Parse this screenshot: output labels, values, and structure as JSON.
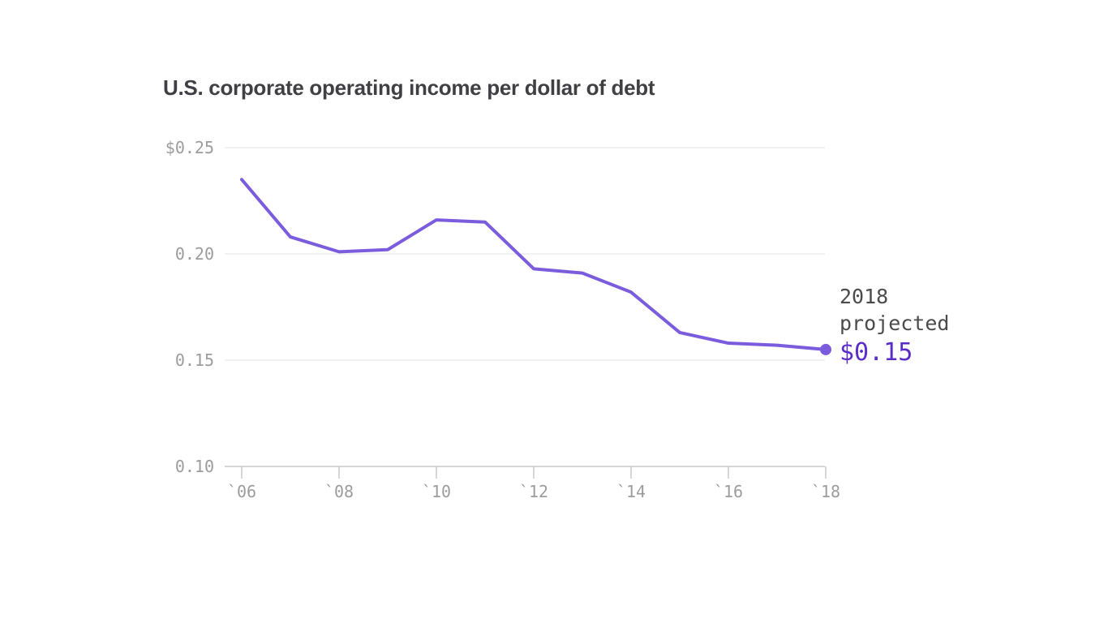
{
  "chart_data": {
    "type": "line",
    "title": "U.S. corporate operating income per dollar of debt",
    "xlabel": "",
    "ylabel": "",
    "x": [
      2006,
      2007,
      2008,
      2009,
      2010,
      2011,
      2012,
      2013,
      2014,
      2015,
      2016,
      2017,
      2018
    ],
    "series": [
      {
        "name": "operating income per dollar of debt",
        "values": [
          0.235,
          0.208,
          0.201,
          0.202,
          0.216,
          0.215,
          0.193,
          0.191,
          0.182,
          0.163,
          0.158,
          0.157,
          0.155
        ]
      }
    ],
    "xlim": [
      2006,
      2018
    ],
    "ylim": [
      0.1,
      0.25
    ],
    "x_ticks": [
      2006,
      2008,
      2010,
      2012,
      2014,
      2016,
      2018
    ],
    "x_tick_labels": [
      "`06",
      "`08",
      "`10",
      "`12",
      "`14",
      "`16",
      "`18"
    ],
    "y_ticks": [
      0.1,
      0.15,
      0.2,
      0.25
    ],
    "y_tick_labels": [
      "0.10",
      "0.15",
      "0.20",
      "$0.25"
    ],
    "grid": "horizontal gridlines at 0.15, 0.20, 0.25; baseline axis at 0.10",
    "legend_position": "none",
    "annotation": {
      "lines": [
        "2018",
        "projected"
      ],
      "value": "$0.15"
    },
    "colors": {
      "line": "#7b5cdd",
      "dot": "#7b5cdd",
      "value_text": "#5b2dc8",
      "title": "#3f3f44",
      "annotation_text": "#4b4b4e",
      "axis_label": "#9c9c9c",
      "gridline": "#e3e3e3",
      "axis_line": "#c9c9c9",
      "background": "#ffffff"
    }
  }
}
